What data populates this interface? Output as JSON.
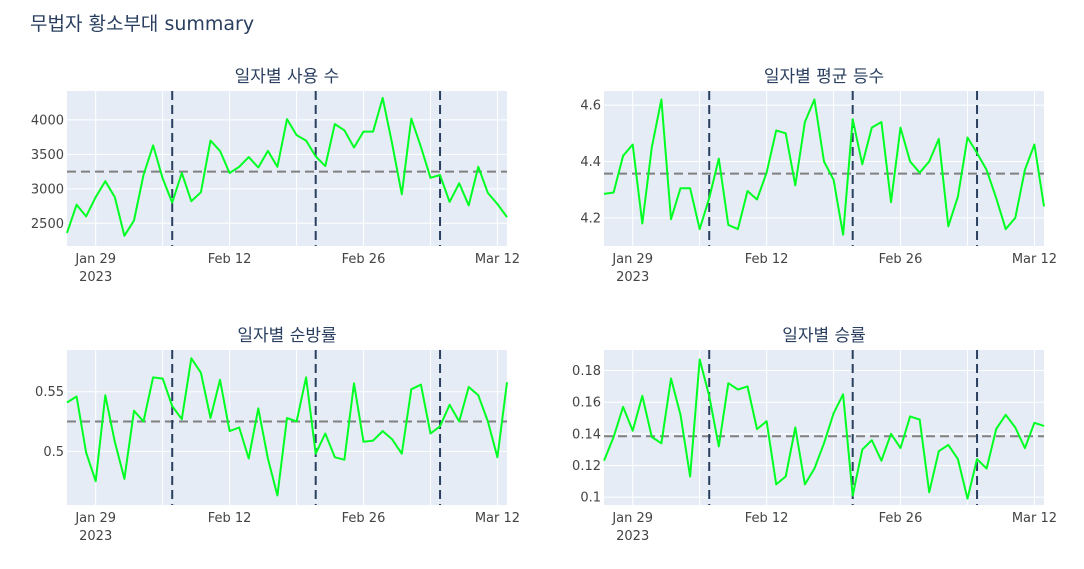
{
  "title": "무법자 황소부대 summary",
  "colors": {
    "plot_bg": "#E5ECF6",
    "grid": "#FFFFFF",
    "line": "#00FF22",
    "mean_line": "#808080",
    "vline": "#2A3F5F",
    "text": "#2A3F5F",
    "tick": "#444444"
  },
  "x_ticks": [
    "Jan 29",
    "Feb 12",
    "Feb 26",
    "Mar 12"
  ],
  "x_tick_year": "2023",
  "chart_data": [
    {
      "type": "line",
      "title": "일자별 사용 수",
      "x_start": "2023-01-26",
      "x_end": "2023-03-13",
      "ylim": [
        2170,
        4420
      ],
      "yticks": [
        2500,
        3000,
        3500,
        4000
      ],
      "ytick_labels": [
        "2500",
        "3000",
        "3500",
        "4000"
      ],
      "mean": 3250,
      "vlines": [
        "2023-02-06",
        "2023-02-21",
        "2023-03-06"
      ],
      "x": [
        "2023-01-26",
        "2023-01-27",
        "2023-01-28",
        "2023-01-29",
        "2023-01-30",
        "2023-01-31",
        "2023-02-01",
        "2023-02-02",
        "2023-02-03",
        "2023-02-04",
        "2023-02-05",
        "2023-02-06",
        "2023-02-07",
        "2023-02-08",
        "2023-02-09",
        "2023-02-10",
        "2023-02-11",
        "2023-02-12",
        "2023-02-13",
        "2023-02-14",
        "2023-02-15",
        "2023-02-16",
        "2023-02-17",
        "2023-02-18",
        "2023-02-19",
        "2023-02-20",
        "2023-02-21",
        "2023-02-22",
        "2023-02-23",
        "2023-02-24",
        "2023-02-25",
        "2023-02-26",
        "2023-02-27",
        "2023-02-28",
        "2023-03-01",
        "2023-03-02",
        "2023-03-03",
        "2023-03-04",
        "2023-03-05",
        "2023-03-06",
        "2023-03-07",
        "2023-03-08",
        "2023-03-09",
        "2023-03-10",
        "2023-03-11",
        "2023-03-12",
        "2023-03-13"
      ],
      "values": [
        2360,
        2770,
        2600,
        2880,
        3110,
        2880,
        2320,
        2540,
        3200,
        3630,
        3150,
        2800,
        3230,
        2820,
        2950,
        3700,
        3550,
        3230,
        3320,
        3460,
        3310,
        3550,
        3320,
        4010,
        3780,
        3700,
        3470,
        3330,
        3940,
        3850,
        3600,
        3830,
        3830,
        4320,
        3650,
        2920,
        4020,
        3610,
        3160,
        3200,
        2810,
        3080,
        2760,
        3320,
        2940,
        2780,
        2590
      ]
    },
    {
      "type": "line",
      "title": "일자별 평균 등수",
      "x_start": "2023-01-26",
      "x_end": "2023-03-13",
      "ylim": [
        4.1,
        4.65
      ],
      "yticks": [
        4.2,
        4.4,
        4.6
      ],
      "ytick_labels": [
        "4.2",
        "4.4",
        "4.6"
      ],
      "mean": 4.357,
      "vlines": [
        "2023-02-06",
        "2023-02-21",
        "2023-03-06"
      ],
      "x": [
        "2023-01-26",
        "2023-01-27",
        "2023-01-28",
        "2023-01-29",
        "2023-01-30",
        "2023-01-31",
        "2023-02-01",
        "2023-02-02",
        "2023-02-03",
        "2023-02-04",
        "2023-02-05",
        "2023-02-06",
        "2023-02-07",
        "2023-02-08",
        "2023-02-09",
        "2023-02-10",
        "2023-02-11",
        "2023-02-12",
        "2023-02-13",
        "2023-02-14",
        "2023-02-15",
        "2023-02-16",
        "2023-02-17",
        "2023-02-18",
        "2023-02-19",
        "2023-02-20",
        "2023-02-21",
        "2023-02-22",
        "2023-02-23",
        "2023-02-24",
        "2023-02-25",
        "2023-02-26",
        "2023-02-27",
        "2023-02-28",
        "2023-03-01",
        "2023-03-02",
        "2023-03-03",
        "2023-03-04",
        "2023-03-05",
        "2023-03-06",
        "2023-03-07",
        "2023-03-08",
        "2023-03-09",
        "2023-03-10",
        "2023-03-11",
        "2023-03-12",
        "2023-03-13"
      ],
      "values": [
        4.285,
        4.29,
        4.42,
        4.46,
        4.18,
        4.45,
        4.62,
        4.195,
        4.305,
        4.305,
        4.16,
        4.27,
        4.41,
        4.175,
        4.16,
        4.295,
        4.265,
        4.36,
        4.51,
        4.5,
        4.315,
        4.54,
        4.62,
        4.4,
        4.335,
        4.14,
        4.55,
        4.39,
        4.52,
        4.54,
        4.255,
        4.52,
        4.4,
        4.36,
        4.4,
        4.48,
        4.17,
        4.275,
        4.485,
        4.43,
        4.37,
        4.27,
        4.16,
        4.2,
        4.37,
        4.46,
        4.24
      ]
    },
    {
      "type": "line",
      "title": "일자별 순방률",
      "x_start": "2023-01-26",
      "x_end": "2023-03-13",
      "ylim": [
        0.455,
        0.585
      ],
      "yticks": [
        0.5,
        0.55
      ],
      "ytick_labels": [
        "0.5",
        "0.55"
      ],
      "mean": 0.525,
      "vlines": [
        "2023-02-06",
        "2023-02-21",
        "2023-03-06"
      ],
      "x": [
        "2023-01-26",
        "2023-01-27",
        "2023-01-28",
        "2023-01-29",
        "2023-01-30",
        "2023-01-31",
        "2023-02-01",
        "2023-02-02",
        "2023-02-03",
        "2023-02-04",
        "2023-02-05",
        "2023-02-06",
        "2023-02-07",
        "2023-02-08",
        "2023-02-09",
        "2023-02-10",
        "2023-02-11",
        "2023-02-12",
        "2023-02-13",
        "2023-02-14",
        "2023-02-15",
        "2023-02-16",
        "2023-02-17",
        "2023-02-18",
        "2023-02-19",
        "2023-02-20",
        "2023-02-21",
        "2023-02-22",
        "2023-02-23",
        "2023-02-24",
        "2023-02-25",
        "2023-02-26",
        "2023-02-27",
        "2023-02-28",
        "2023-03-01",
        "2023-03-02",
        "2023-03-03",
        "2023-03-04",
        "2023-03-05",
        "2023-03-06",
        "2023-03-07",
        "2023-03-08",
        "2023-03-09",
        "2023-03-10",
        "2023-03-11",
        "2023-03-12",
        "2023-03-13"
      ],
      "values": [
        0.541,
        0.546,
        0.499,
        0.475,
        0.547,
        0.508,
        0.477,
        0.534,
        0.525,
        0.562,
        0.561,
        0.538,
        0.527,
        0.578,
        0.566,
        0.528,
        0.56,
        0.517,
        0.52,
        0.494,
        0.536,
        0.494,
        0.463,
        0.528,
        0.525,
        0.562,
        0.498,
        0.515,
        0.495,
        0.493,
        0.557,
        0.508,
        0.509,
        0.517,
        0.51,
        0.498,
        0.552,
        0.556,
        0.515,
        0.521,
        0.539,
        0.525,
        0.554,
        0.547,
        0.525,
        0.495,
        0.558
      ]
    },
    {
      "type": "line",
      "title": "일자별 승률",
      "x_start": "2023-01-26",
      "x_end": "2023-03-13",
      "ylim": [
        0.095,
        0.193
      ],
      "yticks": [
        0.1,
        0.12,
        0.14,
        0.16,
        0.18
      ],
      "ytick_labels": [
        "0.1",
        "0.12",
        "0.14",
        "0.16",
        "0.18"
      ],
      "mean": 0.1385,
      "vlines": [
        "2023-02-06",
        "2023-02-21",
        "2023-03-06"
      ],
      "x": [
        "2023-01-26",
        "2023-01-27",
        "2023-01-28",
        "2023-01-29",
        "2023-01-30",
        "2023-01-31",
        "2023-02-01",
        "2023-02-02",
        "2023-02-03",
        "2023-02-04",
        "2023-02-05",
        "2023-02-06",
        "2023-02-07",
        "2023-02-08",
        "2023-02-09",
        "2023-02-10",
        "2023-02-11",
        "2023-02-12",
        "2023-02-13",
        "2023-02-14",
        "2023-02-15",
        "2023-02-16",
        "2023-02-17",
        "2023-02-18",
        "2023-02-19",
        "2023-02-20",
        "2023-02-21",
        "2023-02-22",
        "2023-02-23",
        "2023-02-24",
        "2023-02-25",
        "2023-02-26",
        "2023-02-27",
        "2023-02-28",
        "2023-03-01",
        "2023-03-02",
        "2023-03-03",
        "2023-03-04",
        "2023-03-05",
        "2023-03-06",
        "2023-03-07",
        "2023-03-08",
        "2023-03-09",
        "2023-03-10",
        "2023-03-11",
        "2023-03-12",
        "2023-03-13"
      ],
      "values": [
        0.123,
        0.138,
        0.157,
        0.142,
        0.164,
        0.138,
        0.134,
        0.175,
        0.152,
        0.113,
        0.187,
        0.164,
        0.132,
        0.172,
        0.168,
        0.17,
        0.143,
        0.148,
        0.108,
        0.113,
        0.144,
        0.108,
        0.118,
        0.134,
        0.153,
        0.165,
        0.101,
        0.13,
        0.136,
        0.123,
        0.14,
        0.131,
        0.151,
        0.149,
        0.103,
        0.129,
        0.133,
        0.124,
        0.099,
        0.124,
        0.118,
        0.143,
        0.152,
        0.144,
        0.131,
        0.147,
        0.145
      ]
    }
  ]
}
